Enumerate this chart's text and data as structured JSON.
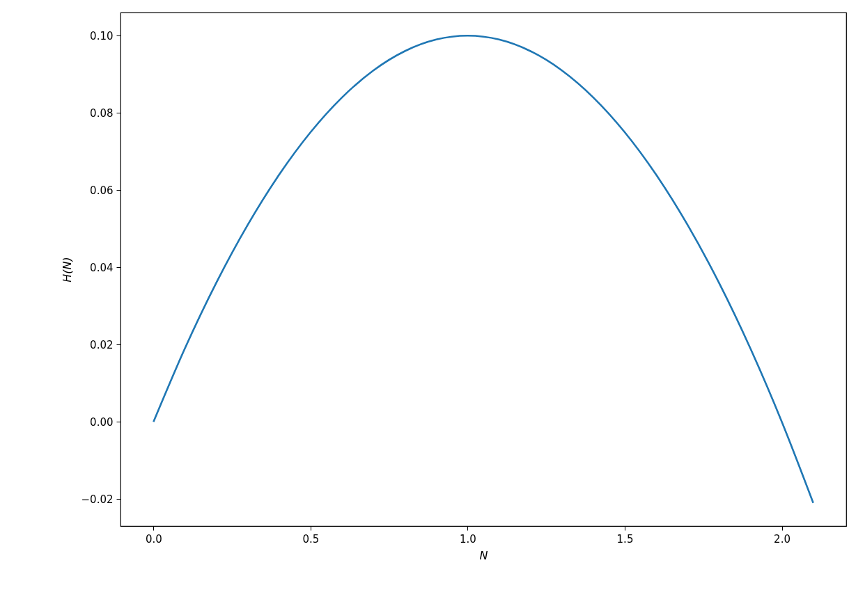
{
  "chart_data": {
    "type": "line",
    "xlabel": "N",
    "ylabel": "H(N)",
    "x": [
      0,
      0.1,
      0.2,
      0.3,
      0.4,
      0.5,
      0.6,
      0.7,
      0.8,
      0.9,
      1.0,
      1.1,
      1.2,
      1.3,
      1.4,
      1.5,
      1.6,
      1.7,
      1.8,
      1.9,
      2.0,
      2.1
    ],
    "series": [
      {
        "color": "#1f77b4",
        "values": [
          0,
          0.019,
          0.036,
          0.051,
          0.064,
          0.075,
          0.084,
          0.091,
          0.096,
          0.099,
          0.1,
          0.099,
          0.096,
          0.091,
          0.084,
          0.075,
          0.064,
          0.051,
          0.036,
          0.019,
          0,
          -0.021
        ]
      }
    ],
    "xlim": [
      -0.105,
      2.205
    ],
    "ylim": [
      -0.027,
      0.106
    ],
    "xticks": [
      {
        "value": 0,
        "label": "0.0"
      },
      {
        "value": 0.5,
        "label": "0.5"
      },
      {
        "value": 1,
        "label": "1.0"
      },
      {
        "value": 1.5,
        "label": "1.5"
      },
      {
        "value": 2,
        "label": "2.0"
      }
    ],
    "yticks": [
      {
        "value": -0.02,
        "label": "−0.02"
      },
      {
        "value": 0,
        "label": "0.00"
      },
      {
        "value": 0.02,
        "label": "0.02"
      },
      {
        "value": 0.04,
        "label": "0.04"
      },
      {
        "value": 0.06,
        "label": "0.06"
      },
      {
        "value": 0.08,
        "label": "0.08"
      },
      {
        "value": 0.1,
        "label": "0.10"
      }
    ],
    "grid": false,
    "legend": false,
    "marker": "none",
    "line_style": "solid"
  }
}
